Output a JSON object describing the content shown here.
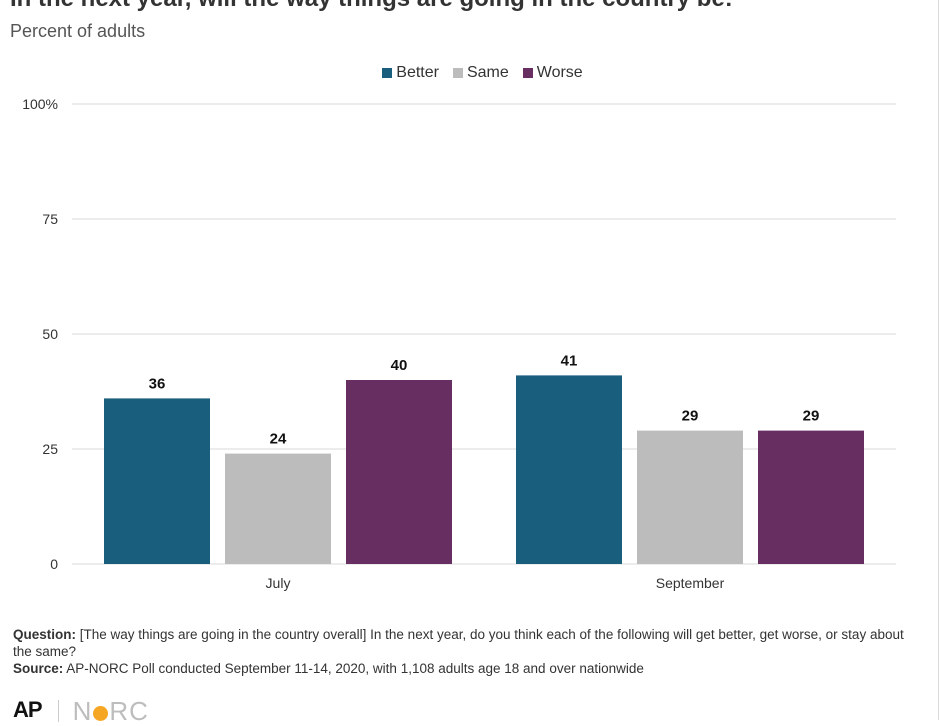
{
  "header": {
    "title": "In the next year, will the way things are going in the country be:",
    "subtitle": "Percent of adults"
  },
  "colors": {
    "better": "#1a5e7e",
    "same": "#bcbcbc",
    "worse": "#662e61",
    "grid": "#d9d9d9",
    "text": "#333333"
  },
  "legend": [
    {
      "label": "Better",
      "color": "#1a5e7e"
    },
    {
      "label": "Same",
      "color": "#bcbcbc"
    },
    {
      "label": "Worse",
      "color": "#662e61"
    }
  ],
  "chart_data": {
    "type": "bar",
    "title": "In the next year, will the way things are going in the country be:",
    "subtitle": "Percent of adults",
    "categories": [
      "July",
      "September"
    ],
    "series": [
      {
        "name": "Better",
        "values": [
          36,
          41
        ]
      },
      {
        "name": "Same",
        "values": [
          24,
          29
        ]
      },
      {
        "name": "Worse",
        "values": [
          40,
          29
        ]
      }
    ],
    "ylim": [
      0,
      100
    ],
    "yticks": [
      "0",
      "25",
      "50",
      "75",
      "100%"
    ],
    "ytick_values": [
      0,
      25,
      50,
      75,
      100
    ],
    "grid": true,
    "legend_position": "top-center",
    "data_labels": true
  },
  "footnote": {
    "question_label": "Question:",
    "question_text": " [The way things are going in the country overall] In the next year, do you think each of the following will get better, get worse, or stay about the same?",
    "source_label": "Source:",
    "source_text": " AP-NORC Poll conducted September 11-14, 2020, with 1,108 adults age 18 and over nationwide"
  },
  "logos": {
    "ap": "AP",
    "norc_left": "N",
    "norc_right": "RC"
  }
}
